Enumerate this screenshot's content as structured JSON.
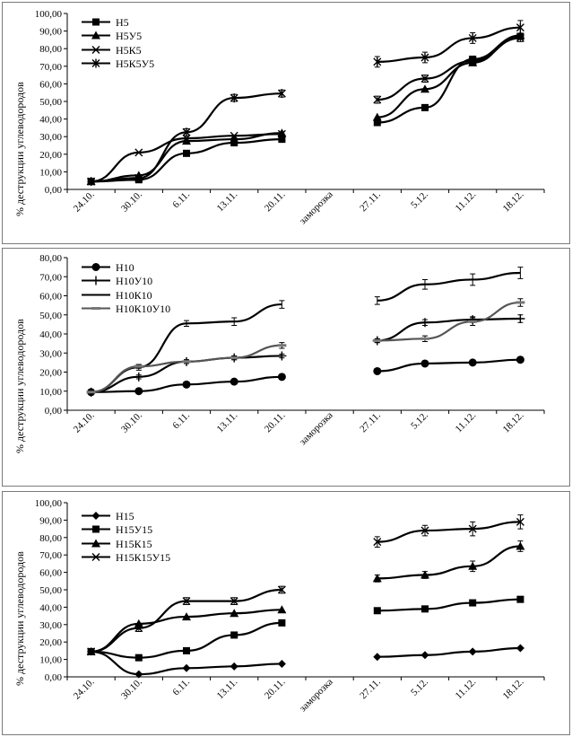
{
  "chart_data": [
    {
      "type": "line",
      "ylabel": "% деструкции углеводородов",
      "ylim": [
        0,
        100
      ],
      "ystep": 10,
      "categories": [
        "24.10.",
        "30.10.",
        "6.11.",
        "13.11.",
        "20.11.",
        "заморозка",
        "27.11.",
        "5.12.",
        "11.12.",
        "18.12."
      ],
      "ticklabels": [
        "0,00",
        "10,00",
        "20,00",
        "30,00",
        "40,00",
        "50,00",
        "60,00",
        "70,00",
        "80,00",
        "90,00",
        "100,00"
      ],
      "series": [
        {
          "name": "Н5",
          "marker": "square",
          "values": [
            4.5,
            5.5,
            20.5,
            26.5,
            28.5,
            null,
            38.0,
            46.5,
            74.0,
            87.0
          ],
          "errors": [
            0,
            0,
            0,
            0,
            0,
            null,
            0,
            0,
            0,
            0
          ]
        },
        {
          "name": "Н5У5",
          "marker": "triangle",
          "values": [
            4.5,
            8.0,
            27.5,
            28.5,
            32.0,
            null,
            41.0,
            57.0,
            72.0,
            87.5
          ],
          "errors": [
            0,
            0,
            0,
            0,
            0,
            null,
            0,
            0,
            0,
            0
          ]
        },
        {
          "name": "Н5К5",
          "marker": "x",
          "values": [
            4.5,
            21.0,
            29.0,
            30.5,
            31.5,
            null,
            51.0,
            63.0,
            73.0,
            86.0
          ],
          "errors": [
            0,
            0,
            0,
            0,
            0,
            null,
            2,
            2,
            2,
            2
          ]
        },
        {
          "name": "Н5К5У5",
          "marker": "star",
          "values": [
            4.5,
            6.5,
            32.5,
            52.0,
            54.5,
            null,
            72.5,
            75.0,
            86.0,
            92.0
          ],
          "errors": [
            0,
            0,
            2,
            2,
            2,
            null,
            3,
            3,
            3,
            4
          ]
        }
      ]
    },
    {
      "type": "line",
      "ylabel": "% деструкции углеводородов",
      "ylim": [
        0,
        80
      ],
      "ystep": 10,
      "categories": [
        "24.10.",
        "30.10.",
        "6.11.",
        "13.11.",
        "20.11.",
        "заморозка",
        "27.11.",
        "5.12.",
        "11.12.",
        "18.12."
      ],
      "ticklabels": [
        "0,00",
        "10,00",
        "20,00",
        "30,00",
        "40,00",
        "50,00",
        "60,00",
        "70,00",
        "80,00"
      ],
      "series": [
        {
          "name": "Н10",
          "marker": "circle",
          "values": [
            9.5,
            10.0,
            13.5,
            15.0,
            17.5,
            null,
            20.5,
            24.5,
            25.0,
            26.5
          ],
          "errors": [
            0,
            0,
            0,
            0,
            0,
            null,
            0,
            0,
            0,
            0
          ]
        },
        {
          "name": "Н10У10",
          "marker": "plus",
          "values": [
            9.5,
            17.5,
            25.5,
            27.5,
            28.5,
            null,
            36.5,
            46.0,
            47.5,
            48.0
          ],
          "errors": [
            0,
            1,
            1,
            1,
            1,
            null,
            1,
            1.5,
            1.5,
            2
          ]
        },
        {
          "name": "Н10К10",
          "marker": "none",
          "values": [
            9.5,
            22.5,
            45.5,
            46.5,
            55.5,
            null,
            57.5,
            66.0,
            68.5,
            72.0
          ],
          "errors": [
            0,
            1.5,
            1.5,
            2,
            2,
            null,
            2,
            2.5,
            3,
            3
          ]
        },
        {
          "name": "Н10К10У10",
          "marker": "dash",
          "values": [
            9.5,
            23.0,
            25.5,
            27.5,
            34.0,
            null,
            36.5,
            37.5,
            46.5,
            56.5
          ],
          "errors": [
            0,
            1,
            1,
            1,
            1.5,
            null,
            1,
            1.5,
            2,
            2
          ]
        }
      ]
    },
    {
      "type": "line",
      "ylabel": "% деструкции углеводородов",
      "ylim": [
        0,
        100
      ],
      "ystep": 10,
      "categories": [
        "24.10.",
        "30.10.",
        "6.11.",
        "13.11.",
        "20.11.",
        "заморозка",
        "27.11.",
        "5.12.",
        "11.12.",
        "18.12."
      ],
      "ticklabels": [
        "0,00",
        "10,00",
        "20,00",
        "30,00",
        "40,00",
        "50,00",
        "60,00",
        "70,00",
        "80,00",
        "90,00",
        "100,00"
      ],
      "series": [
        {
          "name": "Н15",
          "marker": "diamond",
          "values": [
            14.5,
            1.5,
            5.0,
            6.0,
            7.5,
            null,
            11.5,
            12.5,
            14.5,
            16.5
          ],
          "errors": [
            0,
            0,
            0,
            0,
            0,
            null,
            0,
            0,
            0,
            0
          ]
        },
        {
          "name": "Н15У15",
          "marker": "square",
          "values": [
            14.5,
            11.0,
            15.0,
            24.0,
            31.0,
            null,
            38.0,
            39.0,
            42.5,
            44.5
          ],
          "errors": [
            0,
            0,
            0,
            0,
            0,
            null,
            0,
            0,
            0,
            0
          ]
        },
        {
          "name": "Н15К15",
          "marker": "triangle",
          "values": [
            14.5,
            30.5,
            34.5,
            36.5,
            38.5,
            null,
            56.5,
            58.5,
            63.5,
            75.0
          ],
          "errors": [
            0,
            0,
            0,
            0,
            0,
            null,
            2,
            2,
            3,
            3
          ]
        },
        {
          "name": "Н15К15У15",
          "marker": "x",
          "values": [
            14.5,
            28.0,
            43.5,
            43.5,
            50.0,
            null,
            77.5,
            84.0,
            85.0,
            89.0
          ],
          "errors": [
            0,
            2,
            2,
            2,
            2,
            null,
            3,
            3,
            4,
            4
          ]
        }
      ]
    }
  ]
}
